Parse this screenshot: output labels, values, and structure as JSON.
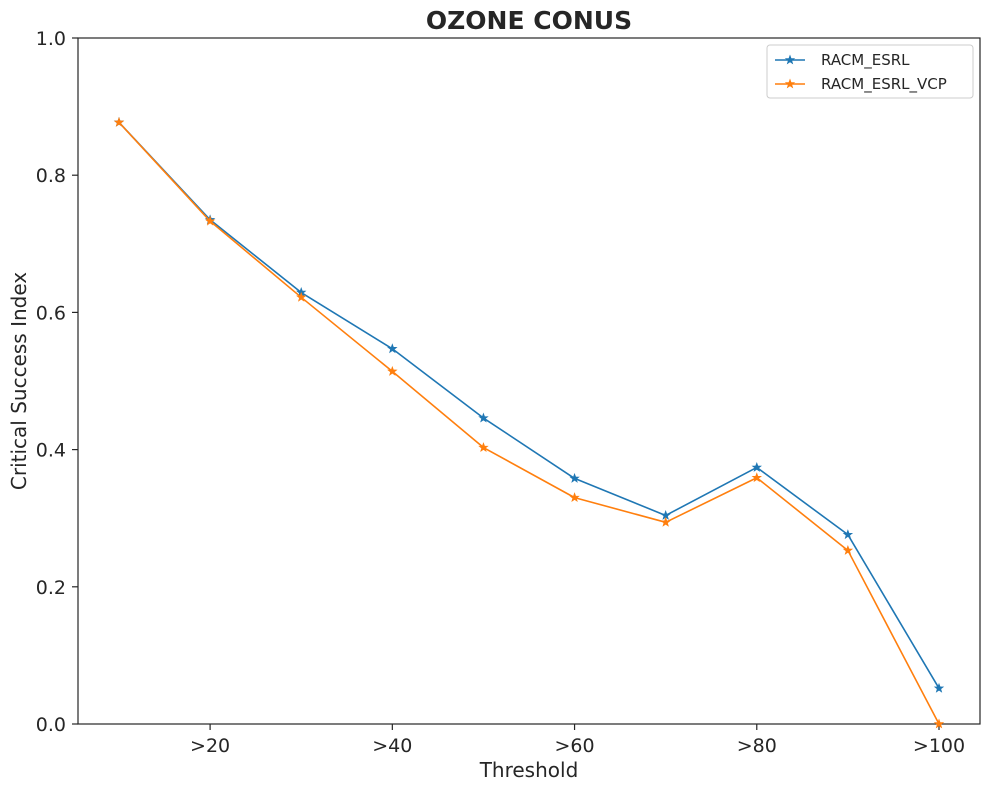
{
  "chart_data": {
    "type": "line",
    "title": "OZONE CONUS",
    "xlabel": "Threshold",
    "ylabel": "Critical Success Index",
    "x": [
      10,
      20,
      30,
      40,
      50,
      60,
      70,
      80,
      90,
      100
    ],
    "xlim": [
      5.5,
      104.5
    ],
    "ylim": [
      0,
      1.0
    ],
    "xticks": [
      20,
      40,
      60,
      80,
      100
    ],
    "xtick_labels": [
      ">20",
      ">40",
      ">60",
      ">80",
      ">100"
    ],
    "yticks": [
      0,
      0.2,
      0.4,
      0.6,
      0.8,
      1.0
    ],
    "ytick_labels": [
      "0.0",
      "0.2",
      "0.4",
      "0.6",
      "0.8",
      "1.0"
    ],
    "grid": false,
    "legend_position": "top-right",
    "marker": "star",
    "series": [
      {
        "name": "RACM_ESRL",
        "color": "#1f77b4",
        "values": [
          0.877,
          0.735,
          0.629,
          0.547,
          0.446,
          0.358,
          0.304,
          0.374,
          0.276,
          0.052
        ]
      },
      {
        "name": "RACM_ESRL_VCP",
        "color": "#ff7f0e",
        "values": [
          0.877,
          0.733,
          0.622,
          0.514,
          0.403,
          0.33,
          0.294,
          0.359,
          0.253,
          0.0
        ]
      }
    ]
  }
}
